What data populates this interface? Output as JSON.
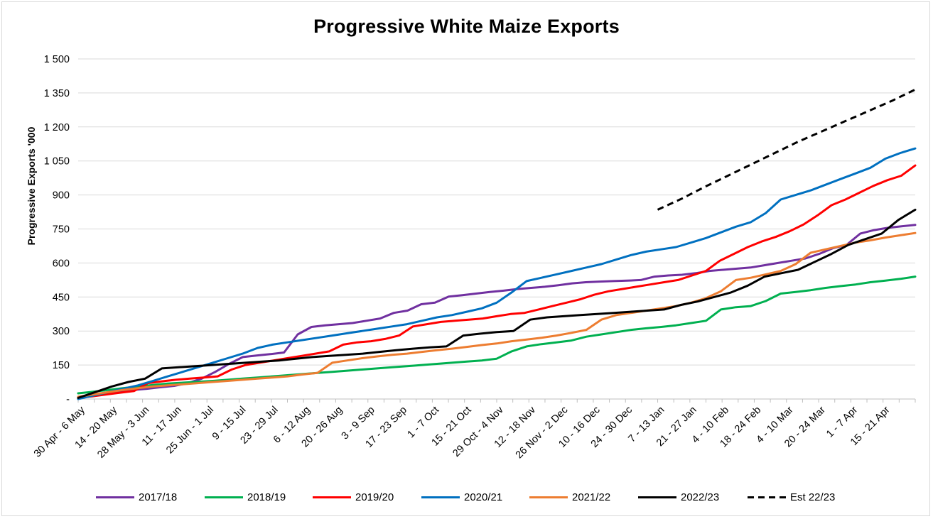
{
  "chart_data": {
    "type": "line",
    "title": "Progressive White Maize Exports",
    "ylabel": "Progressive Exports '000",
    "xlabel": "",
    "ylim": [
      0,
      1500
    ],
    "y_ticks": [
      {
        "value": 0,
        "label": "-"
      },
      {
        "value": 150,
        "label": "150"
      },
      {
        "value": 300,
        "label": "300"
      },
      {
        "value": 450,
        "label": "450"
      },
      {
        "value": 600,
        "label": "600"
      },
      {
        "value": 750,
        "label": "750"
      },
      {
        "value": 900,
        "label": "900"
      },
      {
        "value": 1050,
        "label": "1 050"
      },
      {
        "value": 1200,
        "label": "1 200"
      },
      {
        "value": 1350,
        "label": "1 350"
      },
      {
        "value": 1500,
        "label": "1 500"
      }
    ],
    "x_tick_labels": [
      "30 Apr - 6 May",
      "14 - 20 May",
      "28 May - 3 Jun",
      "11 - 17 Jun",
      "25 Jun - 1 Jul",
      "9 - 15 Jul",
      "23 - 29 Jul",
      "6 - 12 Aug",
      "20 - 26 Aug",
      "3 - 9 Sep",
      "17 - 23 Sep",
      "1 - 7 Oct",
      "15 - 21 Oct",
      "29 Oct - 4 Nov",
      "12 - 18 Nov",
      "26 Nov - 2 Dec",
      "10 - 16 Dec",
      "24 - 30 Dec",
      "7 - 13 Jan",
      "21 - 27 Jan",
      "4 - 10 Feb",
      "18 - 24 Feb",
      "4 - 10 Mar",
      "20 - 24 Mar",
      "1 - 7 Apr",
      "15 - 21 Apr"
    ],
    "week_count": 52,
    "grid": true,
    "legend_position": "bottom",
    "series": [
      {
        "name": "2017/18",
        "color": "#7030A0",
        "dash": false,
        "start_week": 0,
        "values": [
          5,
          18,
          25,
          35,
          40,
          45,
          52,
          58,
          70,
          90,
          120,
          155,
          185,
          192,
          198,
          205,
          285,
          318,
          325,
          330,
          335,
          345,
          355,
          380,
          390,
          418,
          425,
          452,
          458,
          465,
          472,
          478,
          485,
          490,
          495,
          502,
          510,
          515,
          518,
          520,
          522,
          525,
          540,
          545,
          548,
          555,
          565,
          570,
          575,
          580,
          590,
          600,
          610,
          620,
          640,
          665,
          680,
          730,
          745,
          755,
          762,
          768
        ]
      },
      {
        "name": "2018/19",
        "color": "#00B050",
        "dash": false,
        "start_week": 0,
        "values": [
          25,
          32,
          40,
          48,
          55,
          62,
          68,
          72,
          76,
          80,
          85,
          90,
          95,
          100,
          105,
          110,
          115,
          120,
          125,
          130,
          135,
          140,
          145,
          150,
          155,
          160,
          165,
          170,
          178,
          210,
          232,
          242,
          250,
          258,
          275,
          285,
          295,
          305,
          312,
          318,
          325,
          335,
          345,
          395,
          405,
          410,
          432,
          465,
          472,
          480,
          490,
          498,
          505,
          515,
          522,
          530,
          540
        ]
      },
      {
        "name": "2019/20",
        "color": "#FF0000",
        "dash": false,
        "start_week": 0,
        "values": [
          5,
          12,
          20,
          28,
          35,
          70,
          78,
          85,
          90,
          95,
          100,
          130,
          150,
          160,
          170,
          180,
          190,
          200,
          210,
          240,
          250,
          255,
          265,
          280,
          320,
          330,
          340,
          345,
          350,
          355,
          365,
          375,
          380,
          395,
          410,
          425,
          440,
          460,
          475,
          485,
          495,
          505,
          515,
          525,
          545,
          565,
          610,
          640,
          670,
          695,
          715,
          740,
          770,
          810,
          855,
          880,
          910,
          940,
          965,
          985,
          1030
        ]
      },
      {
        "name": "2020/21",
        "color": "#0070C0",
        "dash": false,
        "start_week": 0,
        "values": [
          0,
          15,
          30,
          45,
          60,
          80,
          100,
          120,
          140,
          160,
          180,
          200,
          225,
          240,
          250,
          260,
          270,
          280,
          290,
          300,
          310,
          320,
          330,
          345,
          360,
          370,
          385,
          400,
          425,
          470,
          520,
          535,
          550,
          565,
          580,
          595,
          615,
          635,
          650,
          660,
          670,
          690,
          710,
          735,
          760,
          780,
          820,
          880,
          900,
          920,
          945,
          970,
          995,
          1020,
          1060,
          1085,
          1105
        ]
      },
      {
        "name": "2021/22",
        "color": "#ED7D31",
        "dash": false,
        "start_week": 0,
        "values": [
          10,
          20,
          30,
          40,
          48,
          55,
          60,
          65,
          70,
          75,
          80,
          85,
          90,
          95,
          100,
          108,
          115,
          160,
          170,
          180,
          188,
          195,
          200,
          208,
          215,
          222,
          230,
          238,
          245,
          255,
          262,
          270,
          280,
          292,
          305,
          350,
          370,
          380,
          390,
          400,
          410,
          425,
          445,
          475,
          525,
          535,
          550,
          565,
          595,
          645,
          660,
          675,
          690,
          700,
          712,
          722,
          732
        ]
      },
      {
        "name": "2022/23",
        "color": "#000000",
        "dash": false,
        "start_week": 0,
        "values": [
          5,
          30,
          55,
          75,
          90,
          135,
          140,
          145,
          150,
          155,
          160,
          165,
          170,
          178,
          185,
          190,
          195,
          200,
          208,
          215,
          222,
          228,
          232,
          280,
          288,
          295,
          300,
          350,
          360,
          365,
          370,
          375,
          380,
          385,
          390,
          395,
          415,
          430,
          450,
          470,
          500,
          540,
          555,
          570,
          605,
          640,
          680,
          705,
          730,
          790,
          835
        ]
      },
      {
        "name": "Est 22/23",
        "color": "#000000",
        "dash": true,
        "start_week": 36,
        "values": [
          835,
          882,
          935,
          985,
          1035,
          1085,
          1135,
          1180,
          1225,
          1270,
          1315,
          1365
        ]
      }
    ]
  }
}
